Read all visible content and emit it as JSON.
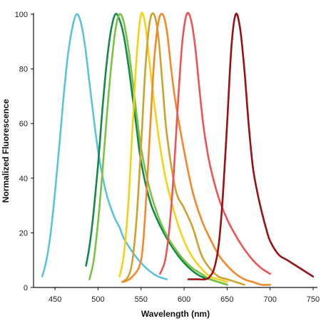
{
  "chart_data": {
    "type": "line",
    "title": "",
    "xlabel": "Wavelength (nm)",
    "ylabel": "Normalized  Fluorescence",
    "xlim": [
      425,
      755
    ],
    "ylim": [
      0,
      100
    ],
    "xticks": [
      450,
      500,
      550,
      600,
      650,
      700,
      750
    ],
    "yticks": [
      0,
      20,
      40,
      60,
      80,
      100
    ],
    "grid": false,
    "legend": "none",
    "series": [
      {
        "color": "#5bc4dc",
        "x": [
          435,
          440,
          445,
          450,
          455,
          460,
          465,
          470,
          475,
          480,
          485,
          490,
          495,
          500,
          505,
          510,
          515,
          520,
          525,
          530,
          540,
          550,
          560,
          570,
          580
        ],
        "values": [
          4,
          10,
          20,
          35,
          52,
          70,
          85,
          95,
          100,
          97,
          88,
          75,
          62,
          50,
          41,
          34,
          29,
          25,
          22,
          18,
          13,
          9,
          6,
          4,
          3
        ]
      },
      {
        "color": "#138a4c",
        "x": [
          486,
          490,
          495,
          500,
          505,
          510,
          515,
          520,
          525,
          530,
          535,
          540,
          545,
          550,
          560,
          570,
          580,
          590,
          600,
          610,
          620,
          630,
          640,
          650
        ],
        "values": [
          8,
          15,
          28,
          45,
          65,
          82,
          94,
          100,
          98,
          92,
          82,
          70,
          58,
          46,
          32,
          24,
          18,
          13,
          9,
          6,
          4,
          3,
          2,
          1
        ]
      },
      {
        "color": "#7cc242",
        "x": [
          490,
          495,
          500,
          505,
          510,
          515,
          520,
          525,
          530,
          535,
          540,
          545,
          550,
          560,
          570,
          580,
          590,
          600,
          610,
          620,
          630,
          640,
          650
        ],
        "values": [
          3,
          10,
          24,
          42,
          62,
          80,
          94,
          100,
          97,
          88,
          76,
          63,
          51,
          36,
          26,
          19,
          14,
          10,
          7,
          5,
          3,
          2,
          1
        ]
      },
      {
        "color": "#f5d216",
        "x": [
          525,
          530,
          535,
          540,
          545,
          550,
          555,
          560,
          565,
          570,
          575,
          580,
          590,
          600,
          610,
          620,
          630,
          640,
          650
        ],
        "values": [
          4,
          12,
          30,
          58,
          85,
          100,
          96,
          82,
          68,
          56,
          46,
          38,
          26,
          17,
          11,
          7,
          4,
          3,
          2
        ]
      },
      {
        "color": "#cfa12e",
        "x": [
          528,
          535,
          540,
          545,
          550,
          555,
          560,
          565,
          570,
          575,
          580,
          590,
          600,
          610,
          620,
          630,
          640,
          650,
          660,
          670
        ],
        "values": [
          2,
          4,
          10,
          26,
          52,
          80,
          97,
          100,
          92,
          74,
          56,
          36,
          29,
          22,
          12,
          7,
          4,
          3,
          2,
          1
        ]
      },
      {
        "color": "#f5892a",
        "x": [
          530,
          540,
          550,
          555,
          560,
          565,
          570,
          575,
          580,
          585,
          590,
          600,
          610,
          620,
          630,
          640,
          650,
          660,
          670,
          680,
          690,
          700
        ],
        "values": [
          2,
          4,
          10,
          28,
          55,
          82,
          97,
          100,
          94,
          80,
          68,
          50,
          35,
          25,
          18,
          12,
          8,
          5,
          3,
          2,
          1,
          1
        ]
      },
      {
        "color": "#ec5556",
        "x": [
          572,
          578,
          583,
          588,
          593,
          598,
          603,
          608,
          613,
          618,
          623,
          630,
          640,
          650,
          660,
          670,
          680,
          690,
          700
        ],
        "values": [
          5,
          10,
          22,
          42,
          68,
          90,
          100,
          98,
          88,
          72,
          58,
          45,
          33,
          25,
          19,
          14,
          10,
          7,
          5
        ]
      },
      {
        "color": "#9b1014",
        "x": [
          605,
          615,
          625,
          630,
          635,
          640,
          645,
          650,
          655,
          660,
          665,
          670,
          675,
          680,
          685,
          690,
          695,
          700,
          710,
          720,
          730,
          740,
          750
        ],
        "values": [
          3,
          3,
          3,
          4,
          7,
          15,
          33,
          60,
          88,
          100,
          95,
          80,
          60,
          44,
          35,
          28,
          22,
          17,
          12,
          10,
          8,
          6,
          4
        ]
      }
    ]
  }
}
